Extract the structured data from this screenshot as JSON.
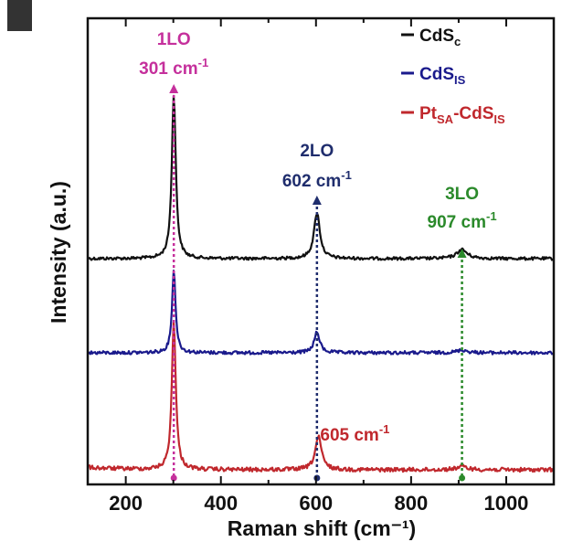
{
  "chart_data": {
    "type": "line",
    "title": "",
    "xlabel": "Raman shift (cm⁻¹)",
    "ylabel": "Intensity (a.u.)",
    "xlim": [
      120,
      1100
    ],
    "xticks": [
      "200",
      "400",
      "600",
      "800",
      "1000"
    ],
    "yticks_shown": false,
    "legend_position": "top-right",
    "series": [
      {
        "legend_main": "CdS",
        "legend_sub": "c",
        "color": "#111111",
        "peaks": [
          {
            "x": 301,
            "height": 1.0,
            "width": 10
          },
          {
            "x": 602,
            "height": 0.28,
            "width": 15
          },
          {
            "x": 907,
            "height": 0.055,
            "width": 26
          }
        ]
      },
      {
        "legend_main": "CdS",
        "legend_sub": "IS",
        "color": "#1a1a8c",
        "peaks": [
          {
            "x": 301,
            "height": 0.6,
            "width": 9
          },
          {
            "x": 602,
            "height": 0.15,
            "width": 14
          },
          {
            "x": 907,
            "height": 0.02,
            "width": 26
          }
        ]
      },
      {
        "legend_main": "Pt",
        "legend_sub": "SA",
        "legend_main2": "-CdS",
        "legend_sub2": "IS",
        "color": "#c0282d",
        "peaks": [
          {
            "x": 301,
            "height": 0.9,
            "width": 10
          },
          {
            "x": 605,
            "height": 0.2,
            "width": 16
          },
          {
            "x": 907,
            "height": 0.02,
            "width": 28
          }
        ]
      }
    ],
    "annotations": [
      {
        "label": "1LO",
        "value": "301 cm",
        "sup": "-1",
        "x": 301,
        "color": "#c5309c"
      },
      {
        "label": "2LO",
        "value": "602 cm",
        "sup": "-1",
        "x": 602,
        "color": "#1f2d6d"
      },
      {
        "label": "3LO",
        "value": "907 cm",
        "sup": "-1",
        "x": 907,
        "color": "#2b8a2b"
      },
      {
        "value": "605 cm",
        "sup": "-1",
        "x": 605,
        "color": "#c0282d"
      }
    ]
  }
}
